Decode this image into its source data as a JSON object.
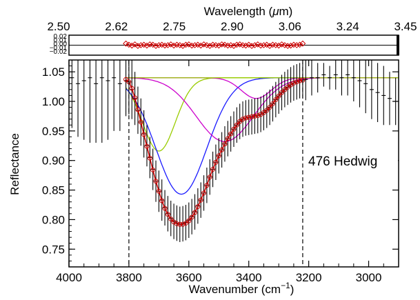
{
  "chart_data": {
    "type": "line",
    "object_label": "476 Hedwig",
    "xlabel": "Wavenumber (cm",
    "xlabel_sup": "−1",
    "xlabel_suffix": ")",
    "top_xlabel": "Wavelength (",
    "top_xlabel_mu": "μ",
    "top_xlabel_suffix": "m)",
    "ylabel": "Reflectance",
    "xlim": [
      4000,
      2900
    ],
    "ylim": [
      0.72,
      1.07
    ],
    "x_ticks": [
      "4000",
      "3800",
      "3600",
      "3400",
      "3200",
      "3000"
    ],
    "y_ticks": [
      "0.75",
      "0.80",
      "0.85",
      "0.90",
      "0.95",
      "1.00",
      "1.05"
    ],
    "top_ticks": [
      "2.50",
      "2.62",
      "2.75",
      "2.90",
      "3.06",
      "3.24",
      "3.45"
    ],
    "residual_ticks": [
      "0.02",
      "0.01",
      "0.00",
      "−0.01",
      "−0.02"
    ],
    "vlines": [
      3800,
      3220
    ],
    "continuum": 1.04,
    "gaussians": [
      {
        "name": "",
        "color": "#99cc00",
        "center": 3700,
        "depth": 0.124,
        "sigma": 55
      },
      {
        "name": "",
        "color": "#1a1aff",
        "center": 3625,
        "depth": 0.197,
        "sigma": 85
      },
      {
        "name": "",
        "color": "#cc00cc",
        "center": 3480,
        "depth": 0.108,
        "sigma": 95
      },
      {
        "name": "",
        "color": "#cc00cc",
        "center": 3375,
        "depth": 0.035,
        "sigma": 50
      }
    ],
    "series": [
      {
        "name": "",
        "color": "#000000",
        "x": [
          3990,
          3970,
          3950,
          3930,
          3910,
          3890,
          3870,
          3850,
          3830,
          3810,
          3800,
          3790,
          3780,
          3770,
          3760,
          3750,
          3740,
          3730,
          3720,
          3710,
          3700,
          3690,
          3680,
          3670,
          3660,
          3650,
          3640,
          3630,
          3620,
          3610,
          3600,
          3590,
          3580,
          3570,
          3560,
          3550,
          3540,
          3530,
          3520,
          3510,
          3500,
          3490,
          3480,
          3470,
          3460,
          3450,
          3440,
          3430,
          3420,
          3410,
          3400,
          3390,
          3380,
          3370,
          3360,
          3350,
          3340,
          3330,
          3320,
          3310,
          3300,
          3290,
          3280,
          3270,
          3260,
          3250,
          3240,
          3230,
          3220,
          3210,
          3190,
          3170,
          3150,
          3130,
          3110,
          3090,
          3070,
          3050,
          3030,
          3010,
          2990,
          2970,
          2950,
          2930,
          2910
        ],
        "y": [
          1.04,
          1.03,
          1.035,
          1.04,
          1.03,
          1.04,
          1.035,
          1.04,
          1.03,
          1.035,
          1.033,
          1.02,
          1.005,
          0.985,
          0.965,
          0.945,
          0.925,
          0.905,
          0.885,
          0.865,
          0.848,
          0.833,
          0.82,
          0.81,
          0.802,
          0.797,
          0.794,
          0.792,
          0.793,
          0.795,
          0.799,
          0.805,
          0.813,
          0.823,
          0.833,
          0.845,
          0.858,
          0.872,
          0.885,
          0.897,
          0.908,
          0.918,
          0.928,
          0.937,
          0.945,
          0.953,
          0.96,
          0.966,
          0.97,
          0.972,
          0.973,
          0.974,
          0.975,
          0.976,
          0.978,
          0.981,
          0.985,
          0.99,
          0.996,
          1.003,
          1.009,
          1.015,
          1.02,
          1.024,
          1.028,
          1.031,
          1.033,
          1.035,
          1.036,
          1.037,
          1.04,
          1.04,
          1.045,
          1.04,
          1.045,
          1.04,
          1.045,
          1.04,
          1.035,
          1.03,
          1.02,
          1.015,
          1.01,
          1.005,
          1.0
        ],
        "err": [
          0.085,
          0.09,
          0.1,
          0.11,
          0.1,
          0.11,
          0.1,
          0.09,
          0.08,
          0.06,
          0.055,
          0.05,
          0.045,
          0.04,
          0.04,
          0.04,
          0.035,
          0.035,
          0.035,
          0.035,
          0.035,
          0.035,
          0.03,
          0.03,
          0.03,
          0.03,
          0.03,
          0.03,
          0.03,
          0.03,
          0.03,
          0.03,
          0.03,
          0.03,
          0.03,
          0.03,
          0.03,
          0.03,
          0.03,
          0.03,
          0.03,
          0.03,
          0.03,
          0.03,
          0.03,
          0.03,
          0.03,
          0.03,
          0.03,
          0.03,
          0.03,
          0.03,
          0.03,
          0.03,
          0.03,
          0.03,
          0.03,
          0.03,
          0.03,
          0.03,
          0.03,
          0.03,
          0.03,
          0.03,
          0.03,
          0.03,
          0.03,
          0.03,
          0.03,
          0.035,
          0.03,
          0.025,
          0.02,
          0.02,
          0.025,
          0.03,
          0.035,
          0.04,
          0.045,
          0.05,
          0.05,
          0.05,
          0.05,
          0.045,
          0.04
        ]
      },
      {
        "name": "",
        "color": "#cc0000",
        "x": [
          3810,
          3800,
          3790,
          3780,
          3770,
          3760,
          3750,
          3740,
          3730,
          3720,
          3710,
          3700,
          3690,
          3680,
          3670,
          3660,
          3650,
          3640,
          3630,
          3620,
          3610,
          3600,
          3590,
          3580,
          3570,
          3560,
          3550,
          3540,
          3530,
          3520,
          3510,
          3500,
          3490,
          3480,
          3470,
          3460,
          3450,
          3440,
          3430,
          3420,
          3410,
          3400,
          3390,
          3380,
          3370,
          3360,
          3350,
          3340,
          3330,
          3320,
          3310,
          3300,
          3290,
          3280,
          3270,
          3260,
          3250,
          3240,
          3230,
          3220
        ],
        "y": [
          1.037,
          1.033,
          1.022,
          1.006,
          0.986,
          0.965,
          0.944,
          0.924,
          0.904,
          0.884,
          0.865,
          0.848,
          0.832,
          0.819,
          0.809,
          0.801,
          0.796,
          0.793,
          0.792,
          0.792,
          0.794,
          0.798,
          0.804,
          0.812,
          0.822,
          0.833,
          0.845,
          0.858,
          0.872,
          0.885,
          0.897,
          0.908,
          0.918,
          0.928,
          0.937,
          0.945,
          0.953,
          0.96,
          0.966,
          0.97,
          0.972,
          0.973,
          0.974,
          0.975,
          0.976,
          0.978,
          0.981,
          0.985,
          0.99,
          0.996,
          1.003,
          1.009,
          1.015,
          1.02,
          1.024,
          1.028,
          1.031,
          1.033,
          1.035,
          1.036
        ]
      }
    ],
    "residuals": {
      "x": [
        3810,
        3800,
        3790,
        3780,
        3770,
        3760,
        3750,
        3740,
        3730,
        3720,
        3710,
        3700,
        3690,
        3680,
        3670,
        3660,
        3650,
        3640,
        3630,
        3620,
        3610,
        3600,
        3590,
        3580,
        3570,
        3560,
        3550,
        3540,
        3530,
        3520,
        3510,
        3500,
        3490,
        3480,
        3470,
        3460,
        3450,
        3440,
        3430,
        3420,
        3410,
        3400,
        3390,
        3380,
        3370,
        3360,
        3350,
        3340,
        3330,
        3320,
        3310,
        3300,
        3290,
        3280,
        3270,
        3260,
        3250,
        3240,
        3230,
        3220
      ],
      "y": [
        0.004,
        0.001,
        -0.001,
        0.002,
        -0.002,
        0.0,
        0.001,
        -0.001,
        0.002,
        0.001,
        -0.002,
        0.0,
        0.001,
        -0.001,
        0.0,
        0.002,
        -0.001,
        0.001,
        0.0,
        -0.002,
        0.001,
        0.002,
        -0.001,
        0.0,
        0.001,
        -0.001,
        0.002,
        0.0,
        -0.002,
        0.001,
        0.0,
        -0.001,
        0.002,
        0.001,
        -0.001,
        0.0,
        -0.002,
        0.001,
        0.002,
        0.0,
        -0.001,
        0.001,
        -0.002,
        0.0,
        0.002,
        -0.001,
        0.0,
        0.001,
        -0.002,
        0.001,
        0.0,
        -0.001,
        0.002,
        0.0,
        -0.002,
        -0.001,
        0.001,
        0.0,
        0.001,
        0.004
      ],
      "ylim": [
        -0.025,
        0.025
      ],
      "color": "#cc0000"
    }
  }
}
